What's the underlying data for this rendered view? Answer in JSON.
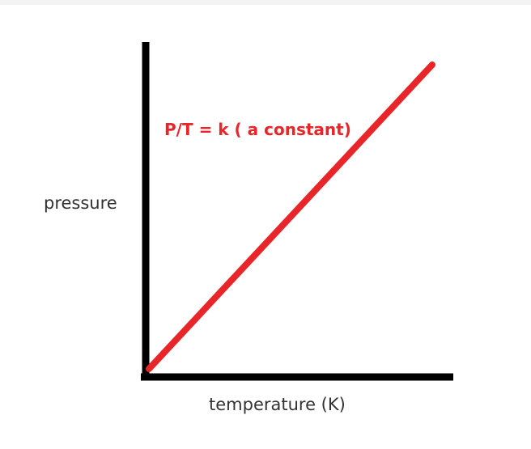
{
  "chart_data": {
    "type": "line",
    "title": "",
    "xlabel": "temperature (K)",
    "ylabel": "pressure",
    "annotation": "P/T = k ( a constant)",
    "grid": false,
    "legend": "none",
    "ticks": false,
    "series": [
      {
        "x": [
          0,
          1
        ],
        "y": [
          0,
          1
        ],
        "color": "#e8262a"
      }
    ],
    "axis_color": "#000000"
  }
}
